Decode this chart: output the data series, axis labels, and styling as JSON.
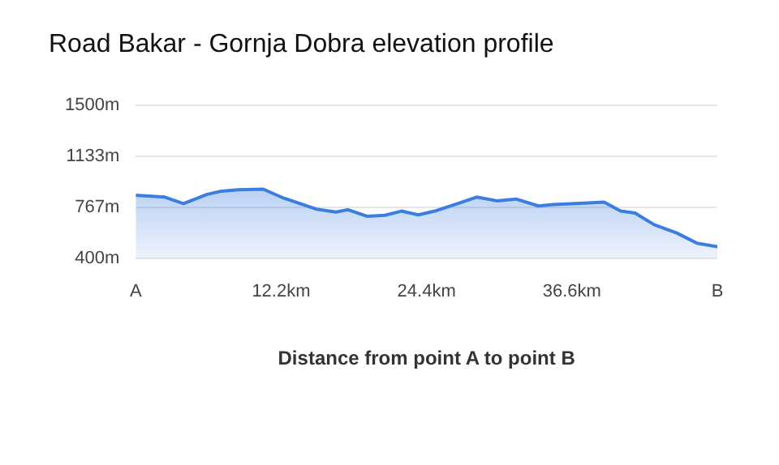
{
  "chart_data": {
    "type": "area",
    "title": "Road Bakar - Gornja Dobra elevation profile",
    "xlabel": "Distance from point A to point B",
    "x": [
      0,
      2.45,
      4.0,
      6.0,
      7.2,
      8.6,
      10.7,
      12.4,
      13.8,
      15.2,
      16.8,
      17.8,
      19.4,
      20.9,
      22.3,
      23.7,
      25.1,
      27.0,
      28.6,
      30.3,
      31.9,
      33.8,
      35.0,
      36.9,
      39.3,
      40.7,
      41.9,
      43.5,
      45.4,
      47.1,
      48.8
    ],
    "series": [
      {
        "color": "#3b7de0",
        "values": [
          854,
          841,
          794,
          861,
          884,
          894,
          898,
          834,
          794,
          753,
          733,
          750,
          703,
          710,
          740,
          713,
          740,
          794,
          841,
          814,
          827,
          777,
          787,
          794,
          804,
          740,
          726,
          642,
          582,
          508,
          484
        ]
      }
    ],
    "xlim": [
      0,
      48.8
    ],
    "xticks": [
      {
        "value": 0,
        "label": "A"
      },
      {
        "value": 12.2,
        "label": "12.2km"
      },
      {
        "value": 24.4,
        "label": "24.4km"
      },
      {
        "value": 36.6,
        "label": "36.6km"
      },
      {
        "value": 48.8,
        "label": "B"
      }
    ],
    "ylim": [
      400,
      1500
    ],
    "yticks": [
      {
        "value": 400,
        "label": "400m"
      },
      {
        "value": 767,
        "label": "767m"
      },
      {
        "value": 1133,
        "label": "1133m"
      },
      {
        "value": 1500,
        "label": "1500m"
      }
    ],
    "grid": "y",
    "legend": false
  }
}
